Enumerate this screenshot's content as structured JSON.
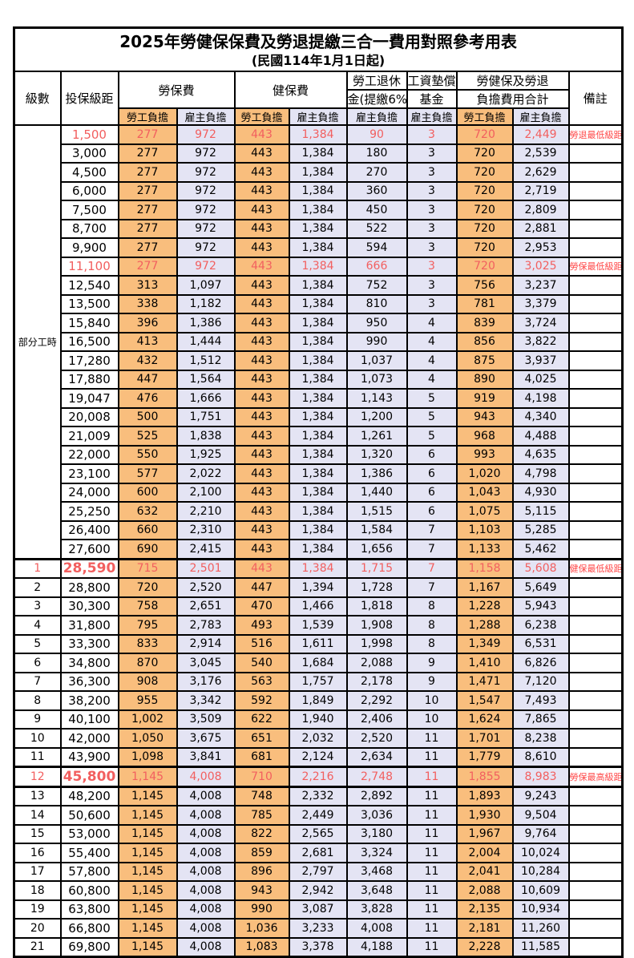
{
  "title": "2025年勞健保保費及勞退提繳三合一費用對照參考用表",
  "subtitle": "(民國114年1月1日起)",
  "header": {
    "level": "級數",
    "bracket": "投保級距",
    "labor_insurance": "勞保費",
    "health_insurance": "健保費",
    "pension_line1": "勞工退休",
    "pension_line2": "金(提繳6%)",
    "fund_line1": "工資墊償",
    "fund_line2": "基金",
    "total_line1": "勞健保及勞退",
    "total_line2": "負擔費用合計",
    "remark": "備註",
    "employee_burden": "勞工負擔",
    "employer_burden": "雇主負擔"
  },
  "part_time_label": "部分工時",
  "part_time_span": 23,
  "colors": {
    "employee_column_bg": "#F9BE7D",
    "employer_column_bg": "#E4E4F4",
    "highlight_value_red": "#F25F5F",
    "remark_red": "#FF4747",
    "border": "#000000"
  },
  "rows": [
    {
      "level": "",
      "bracket": "1,500",
      "li_emp": "277",
      "li_er": "972",
      "hi_emp": "443",
      "hi_er": "1,384",
      "pension": "90",
      "fund": "3",
      "tot_emp": "720",
      "tot_er": "2,449",
      "remark": "勞退最低級距",
      "red": true,
      "bold": false,
      "thick": ""
    },
    {
      "level": "",
      "bracket": "3,000",
      "li_emp": "277",
      "li_er": "972",
      "hi_emp": "443",
      "hi_er": "1,384",
      "pension": "180",
      "fund": "3",
      "tot_emp": "720",
      "tot_er": "2,539",
      "remark": "",
      "red": false,
      "bold": false,
      "thick": ""
    },
    {
      "level": "",
      "bracket": "4,500",
      "li_emp": "277",
      "li_er": "972",
      "hi_emp": "443",
      "hi_er": "1,384",
      "pension": "270",
      "fund": "3",
      "tot_emp": "720",
      "tot_er": "2,629",
      "remark": "",
      "red": false,
      "bold": false,
      "thick": ""
    },
    {
      "level": "",
      "bracket": "6,000",
      "li_emp": "277",
      "li_er": "972",
      "hi_emp": "443",
      "hi_er": "1,384",
      "pension": "360",
      "fund": "3",
      "tot_emp": "720",
      "tot_er": "2,719",
      "remark": "",
      "red": false,
      "bold": false,
      "thick": ""
    },
    {
      "level": "",
      "bracket": "7,500",
      "li_emp": "277",
      "li_er": "972",
      "hi_emp": "443",
      "hi_er": "1,384",
      "pension": "450",
      "fund": "3",
      "tot_emp": "720",
      "tot_er": "2,809",
      "remark": "",
      "red": false,
      "bold": false,
      "thick": ""
    },
    {
      "level": "",
      "bracket": "8,700",
      "li_emp": "277",
      "li_er": "972",
      "hi_emp": "443",
      "hi_er": "1,384",
      "pension": "522",
      "fund": "3",
      "tot_emp": "720",
      "tot_er": "2,881",
      "remark": "",
      "red": false,
      "bold": false,
      "thick": ""
    },
    {
      "level": "",
      "bracket": "9,900",
      "li_emp": "277",
      "li_er": "972",
      "hi_emp": "443",
      "hi_er": "1,384",
      "pension": "594",
      "fund": "3",
      "tot_emp": "720",
      "tot_er": "2,953",
      "remark": "",
      "red": false,
      "bold": false,
      "thick": ""
    },
    {
      "level": "",
      "bracket": "11,100",
      "li_emp": "277",
      "li_er": "972",
      "hi_emp": "443",
      "hi_er": "1,384",
      "pension": "666",
      "fund": "3",
      "tot_emp": "720",
      "tot_er": "3,025",
      "remark": "勞保最低級距",
      "red": true,
      "bold": false,
      "thick": ""
    },
    {
      "level": "",
      "bracket": "12,540",
      "li_emp": "313",
      "li_er": "1,097",
      "hi_emp": "443",
      "hi_er": "1,384",
      "pension": "752",
      "fund": "3",
      "tot_emp": "756",
      "tot_er": "3,237",
      "remark": "",
      "red": false,
      "bold": false,
      "thick": ""
    },
    {
      "level": "",
      "bracket": "13,500",
      "li_emp": "338",
      "li_er": "1,182",
      "hi_emp": "443",
      "hi_er": "1,384",
      "pension": "810",
      "fund": "3",
      "tot_emp": "781",
      "tot_er": "3,379",
      "remark": "",
      "red": false,
      "bold": false,
      "thick": ""
    },
    {
      "level": "",
      "bracket": "15,840",
      "li_emp": "396",
      "li_er": "1,386",
      "hi_emp": "443",
      "hi_er": "1,384",
      "pension": "950",
      "fund": "4",
      "tot_emp": "839",
      "tot_er": "3,724",
      "remark": "",
      "red": false,
      "bold": false,
      "thick": ""
    },
    {
      "level": "",
      "bracket": "16,500",
      "li_emp": "413",
      "li_er": "1,444",
      "hi_emp": "443",
      "hi_er": "1,384",
      "pension": "990",
      "fund": "4",
      "tot_emp": "856",
      "tot_er": "3,822",
      "remark": "",
      "red": false,
      "bold": false,
      "thick": ""
    },
    {
      "level": "",
      "bracket": "17,280",
      "li_emp": "432",
      "li_er": "1,512",
      "hi_emp": "443",
      "hi_er": "1,384",
      "pension": "1,037",
      "fund": "4",
      "tot_emp": "875",
      "tot_er": "3,937",
      "remark": "",
      "red": false,
      "bold": false,
      "thick": ""
    },
    {
      "level": "",
      "bracket": "17,880",
      "li_emp": "447",
      "li_er": "1,564",
      "hi_emp": "443",
      "hi_er": "1,384",
      "pension": "1,073",
      "fund": "4",
      "tot_emp": "890",
      "tot_er": "4,025",
      "remark": "",
      "red": false,
      "bold": false,
      "thick": ""
    },
    {
      "level": "",
      "bracket": "19,047",
      "li_emp": "476",
      "li_er": "1,666",
      "hi_emp": "443",
      "hi_er": "1,384",
      "pension": "1,143",
      "fund": "5",
      "tot_emp": "919",
      "tot_er": "4,198",
      "remark": "",
      "red": false,
      "bold": false,
      "thick": ""
    },
    {
      "level": "",
      "bracket": "20,008",
      "li_emp": "500",
      "li_er": "1,751",
      "hi_emp": "443",
      "hi_er": "1,384",
      "pension": "1,200",
      "fund": "5",
      "tot_emp": "943",
      "tot_er": "4,340",
      "remark": "",
      "red": false,
      "bold": false,
      "thick": ""
    },
    {
      "level": "",
      "bracket": "21,009",
      "li_emp": "525",
      "li_er": "1,838",
      "hi_emp": "443",
      "hi_er": "1,384",
      "pension": "1,261",
      "fund": "5",
      "tot_emp": "968",
      "tot_er": "4,488",
      "remark": "",
      "red": false,
      "bold": false,
      "thick": ""
    },
    {
      "level": "",
      "bracket": "22,000",
      "li_emp": "550",
      "li_er": "1,925",
      "hi_emp": "443",
      "hi_er": "1,384",
      "pension": "1,320",
      "fund": "6",
      "tot_emp": "993",
      "tot_er": "4,635",
      "remark": "",
      "red": false,
      "bold": false,
      "thick": ""
    },
    {
      "level": "",
      "bracket": "23,100",
      "li_emp": "577",
      "li_er": "2,022",
      "hi_emp": "443",
      "hi_er": "1,384",
      "pension": "1,386",
      "fund": "6",
      "tot_emp": "1,020",
      "tot_er": "4,798",
      "remark": "",
      "red": false,
      "bold": false,
      "thick": ""
    },
    {
      "level": "",
      "bracket": "24,000",
      "li_emp": "600",
      "li_er": "2,100",
      "hi_emp": "443",
      "hi_er": "1,384",
      "pension": "1,440",
      "fund": "6",
      "tot_emp": "1,043",
      "tot_er": "4,930",
      "remark": "",
      "red": false,
      "bold": false,
      "thick": ""
    },
    {
      "level": "",
      "bracket": "25,250",
      "li_emp": "632",
      "li_er": "2,210",
      "hi_emp": "443",
      "hi_er": "1,384",
      "pension": "1,515",
      "fund": "6",
      "tot_emp": "1,075",
      "tot_er": "5,115",
      "remark": "",
      "red": false,
      "bold": false,
      "thick": ""
    },
    {
      "level": "",
      "bracket": "26,400",
      "li_emp": "660",
      "li_er": "2,310",
      "hi_emp": "443",
      "hi_er": "1,384",
      "pension": "1,584",
      "fund": "7",
      "tot_emp": "1,103",
      "tot_er": "5,285",
      "remark": "",
      "red": false,
      "bold": false,
      "thick": ""
    },
    {
      "level": "",
      "bracket": "27,600",
      "li_emp": "690",
      "li_er": "2,415",
      "hi_emp": "443",
      "hi_er": "1,384",
      "pension": "1,656",
      "fund": "7",
      "tot_emp": "1,133",
      "tot_er": "5,462",
      "remark": "",
      "red": false,
      "bold": false,
      "thick": ""
    },
    {
      "level": "1",
      "bracket": "28,590",
      "li_emp": "715",
      "li_er": "2,501",
      "hi_emp": "443",
      "hi_er": "1,384",
      "pension": "1,715",
      "fund": "7",
      "tot_emp": "1,158",
      "tot_er": "5,608",
      "remark": "健保最低級距",
      "red": true,
      "bold": true,
      "thick": "top"
    },
    {
      "level": "2",
      "bracket": "28,800",
      "li_emp": "720",
      "li_er": "2,520",
      "hi_emp": "447",
      "hi_er": "1,394",
      "pension": "1,728",
      "fund": "7",
      "tot_emp": "1,167",
      "tot_er": "5,649",
      "remark": "",
      "red": false,
      "bold": false,
      "thick": ""
    },
    {
      "level": "3",
      "bracket": "30,300",
      "li_emp": "758",
      "li_er": "2,651",
      "hi_emp": "470",
      "hi_er": "1,466",
      "pension": "1,818",
      "fund": "8",
      "tot_emp": "1,228",
      "tot_er": "5,943",
      "remark": "",
      "red": false,
      "bold": false,
      "thick": ""
    },
    {
      "level": "4",
      "bracket": "31,800",
      "li_emp": "795",
      "li_er": "2,783",
      "hi_emp": "493",
      "hi_er": "1,539",
      "pension": "1,908",
      "fund": "8",
      "tot_emp": "1,288",
      "tot_er": "6,238",
      "remark": "",
      "red": false,
      "bold": false,
      "thick": ""
    },
    {
      "level": "5",
      "bracket": "33,300",
      "li_emp": "833",
      "li_er": "2,914",
      "hi_emp": "516",
      "hi_er": "1,611",
      "pension": "1,998",
      "fund": "8",
      "tot_emp": "1,349",
      "tot_er": "6,531",
      "remark": "",
      "red": false,
      "bold": false,
      "thick": ""
    },
    {
      "level": "6",
      "bracket": "34,800",
      "li_emp": "870",
      "li_er": "3,045",
      "hi_emp": "540",
      "hi_er": "1,684",
      "pension": "2,088",
      "fund": "9",
      "tot_emp": "1,410",
      "tot_er": "6,826",
      "remark": "",
      "red": false,
      "bold": false,
      "thick": ""
    },
    {
      "level": "7",
      "bracket": "36,300",
      "li_emp": "908",
      "li_er": "3,176",
      "hi_emp": "563",
      "hi_er": "1,757",
      "pension": "2,178",
      "fund": "9",
      "tot_emp": "1,471",
      "tot_er": "7,120",
      "remark": "",
      "red": false,
      "bold": false,
      "thick": ""
    },
    {
      "level": "8",
      "bracket": "38,200",
      "li_emp": "955",
      "li_er": "3,342",
      "hi_emp": "592",
      "hi_er": "1,849",
      "pension": "2,292",
      "fund": "10",
      "tot_emp": "1,547",
      "tot_er": "7,493",
      "remark": "",
      "red": false,
      "bold": false,
      "thick": ""
    },
    {
      "level": "9",
      "bracket": "40,100",
      "li_emp": "1,002",
      "li_er": "3,509",
      "hi_emp": "622",
      "hi_er": "1,940",
      "pension": "2,406",
      "fund": "10",
      "tot_emp": "1,624",
      "tot_er": "7,865",
      "remark": "",
      "red": false,
      "bold": false,
      "thick": ""
    },
    {
      "level": "10",
      "bracket": "42,000",
      "li_emp": "1,050",
      "li_er": "3,675",
      "hi_emp": "651",
      "hi_er": "2,032",
      "pension": "2,520",
      "fund": "11",
      "tot_emp": "1,701",
      "tot_er": "8,238",
      "remark": "",
      "red": false,
      "bold": false,
      "thick": ""
    },
    {
      "level": "11",
      "bracket": "43,900",
      "li_emp": "1,098",
      "li_er": "3,841",
      "hi_emp": "681",
      "hi_er": "2,124",
      "pension": "2,634",
      "fund": "11",
      "tot_emp": "1,779",
      "tot_er": "8,610",
      "remark": "",
      "red": false,
      "bold": false,
      "thick": ""
    },
    {
      "level": "12",
      "bracket": "45,800",
      "li_emp": "1,145",
      "li_er": "4,008",
      "hi_emp": "710",
      "hi_er": "2,216",
      "pension": "2,748",
      "fund": "11",
      "tot_emp": "1,855",
      "tot_er": "8,983",
      "remark": "勞保最高級距",
      "red": true,
      "bold": true,
      "thick": "both"
    },
    {
      "level": "13",
      "bracket": "48,200",
      "li_emp": "1,145",
      "li_er": "4,008",
      "hi_emp": "748",
      "hi_er": "2,332",
      "pension": "2,892",
      "fund": "11",
      "tot_emp": "1,893",
      "tot_er": "9,243",
      "remark": "",
      "red": false,
      "bold": false,
      "thick": ""
    },
    {
      "level": "14",
      "bracket": "50,600",
      "li_emp": "1,145",
      "li_er": "4,008",
      "hi_emp": "785",
      "hi_er": "2,449",
      "pension": "3,036",
      "fund": "11",
      "tot_emp": "1,930",
      "tot_er": "9,504",
      "remark": "",
      "red": false,
      "bold": false,
      "thick": ""
    },
    {
      "level": "15",
      "bracket": "53,000",
      "li_emp": "1,145",
      "li_er": "4,008",
      "hi_emp": "822",
      "hi_er": "2,565",
      "pension": "3,180",
      "fund": "11",
      "tot_emp": "1,967",
      "tot_er": "9,764",
      "remark": "",
      "red": false,
      "bold": false,
      "thick": ""
    },
    {
      "level": "16",
      "bracket": "55,400",
      "li_emp": "1,145",
      "li_er": "4,008",
      "hi_emp": "859",
      "hi_er": "2,681",
      "pension": "3,324",
      "fund": "11",
      "tot_emp": "2,004",
      "tot_er": "10,024",
      "remark": "",
      "red": false,
      "bold": false,
      "thick": ""
    },
    {
      "level": "17",
      "bracket": "57,800",
      "li_emp": "1,145",
      "li_er": "4,008",
      "hi_emp": "896",
      "hi_er": "2,797",
      "pension": "3,468",
      "fund": "11",
      "tot_emp": "2,041",
      "tot_er": "10,284",
      "remark": "",
      "red": false,
      "bold": false,
      "thick": ""
    },
    {
      "level": "18",
      "bracket": "60,800",
      "li_emp": "1,145",
      "li_er": "4,008",
      "hi_emp": "943",
      "hi_er": "2,942",
      "pension": "3,648",
      "fund": "11",
      "tot_emp": "2,088",
      "tot_er": "10,609",
      "remark": "",
      "red": false,
      "bold": false,
      "thick": ""
    },
    {
      "level": "19",
      "bracket": "63,800",
      "li_emp": "1,145",
      "li_er": "4,008",
      "hi_emp": "990",
      "hi_er": "3,087",
      "pension": "3,828",
      "fund": "11",
      "tot_emp": "2,135",
      "tot_er": "10,934",
      "remark": "",
      "red": false,
      "bold": false,
      "thick": ""
    },
    {
      "level": "20",
      "bracket": "66,800",
      "li_emp": "1,145",
      "li_er": "4,008",
      "hi_emp": "1,036",
      "hi_er": "3,233",
      "pension": "4,008",
      "fund": "11",
      "tot_emp": "2,181",
      "tot_er": "11,260",
      "remark": "",
      "red": false,
      "bold": false,
      "thick": ""
    },
    {
      "level": "21",
      "bracket": "69,800",
      "li_emp": "1,145",
      "li_er": "4,008",
      "hi_emp": "1,083",
      "hi_er": "3,378",
      "pension": "4,188",
      "fund": "11",
      "tot_emp": "2,228",
      "tot_er": "11,585",
      "remark": "",
      "red": false,
      "bold": false,
      "thick": ""
    }
  ]
}
